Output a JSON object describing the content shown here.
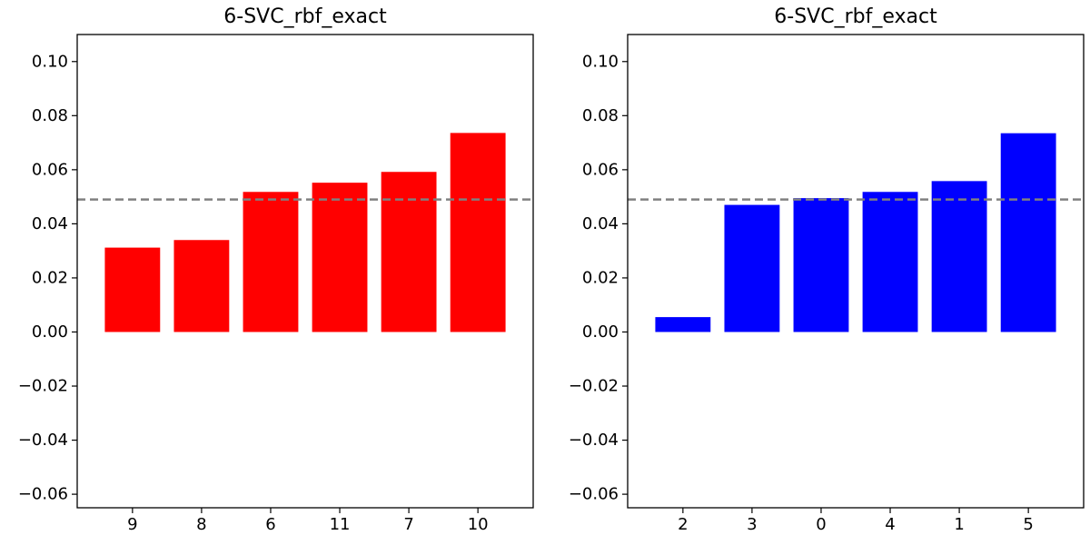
{
  "chart_data": [
    {
      "type": "bar",
      "title": "6-SVC_rbf_exact",
      "xlabel": "",
      "ylabel": "",
      "categories": [
        "9",
        "8",
        "6",
        "11",
        "7",
        "10"
      ],
      "values": [
        0.0312,
        0.034,
        0.0518,
        0.0552,
        0.0592,
        0.0736
      ],
      "color": "#ff0000",
      "reference_line": {
        "y": 0.049,
        "style": "dashed",
        "color": "#808080"
      },
      "ylim": [
        -0.065,
        0.11
      ],
      "yticks": [
        -0.06,
        -0.04,
        -0.02,
        0.0,
        0.02,
        0.04,
        0.06,
        0.08,
        0.1
      ],
      "ytick_labels": [
        "−0.06",
        "−0.04",
        "−0.02",
        "0.00",
        "0.02",
        "0.04",
        "0.06",
        "0.08",
        "0.10"
      ],
      "grid": false,
      "legend": "none"
    },
    {
      "type": "bar",
      "title": "6-SVC_rbf_exact",
      "xlabel": "",
      "ylabel": "",
      "categories": [
        "2",
        "3",
        "0",
        "4",
        "1",
        "5"
      ],
      "values": [
        0.0055,
        0.047,
        0.0495,
        0.0518,
        0.0558,
        0.0735
      ],
      "color": "#0000ff",
      "reference_line": {
        "y": 0.049,
        "style": "dashed",
        "color": "#808080"
      },
      "ylim": [
        -0.065,
        0.11
      ],
      "yticks": [
        -0.06,
        -0.04,
        -0.02,
        0.0,
        0.02,
        0.04,
        0.06,
        0.08,
        0.1
      ],
      "ytick_labels": [
        "−0.06",
        "−0.04",
        "−0.02",
        "0.00",
        "0.02",
        "0.04",
        "0.06",
        "0.08",
        "0.10"
      ],
      "grid": false,
      "legend": "none"
    }
  ]
}
